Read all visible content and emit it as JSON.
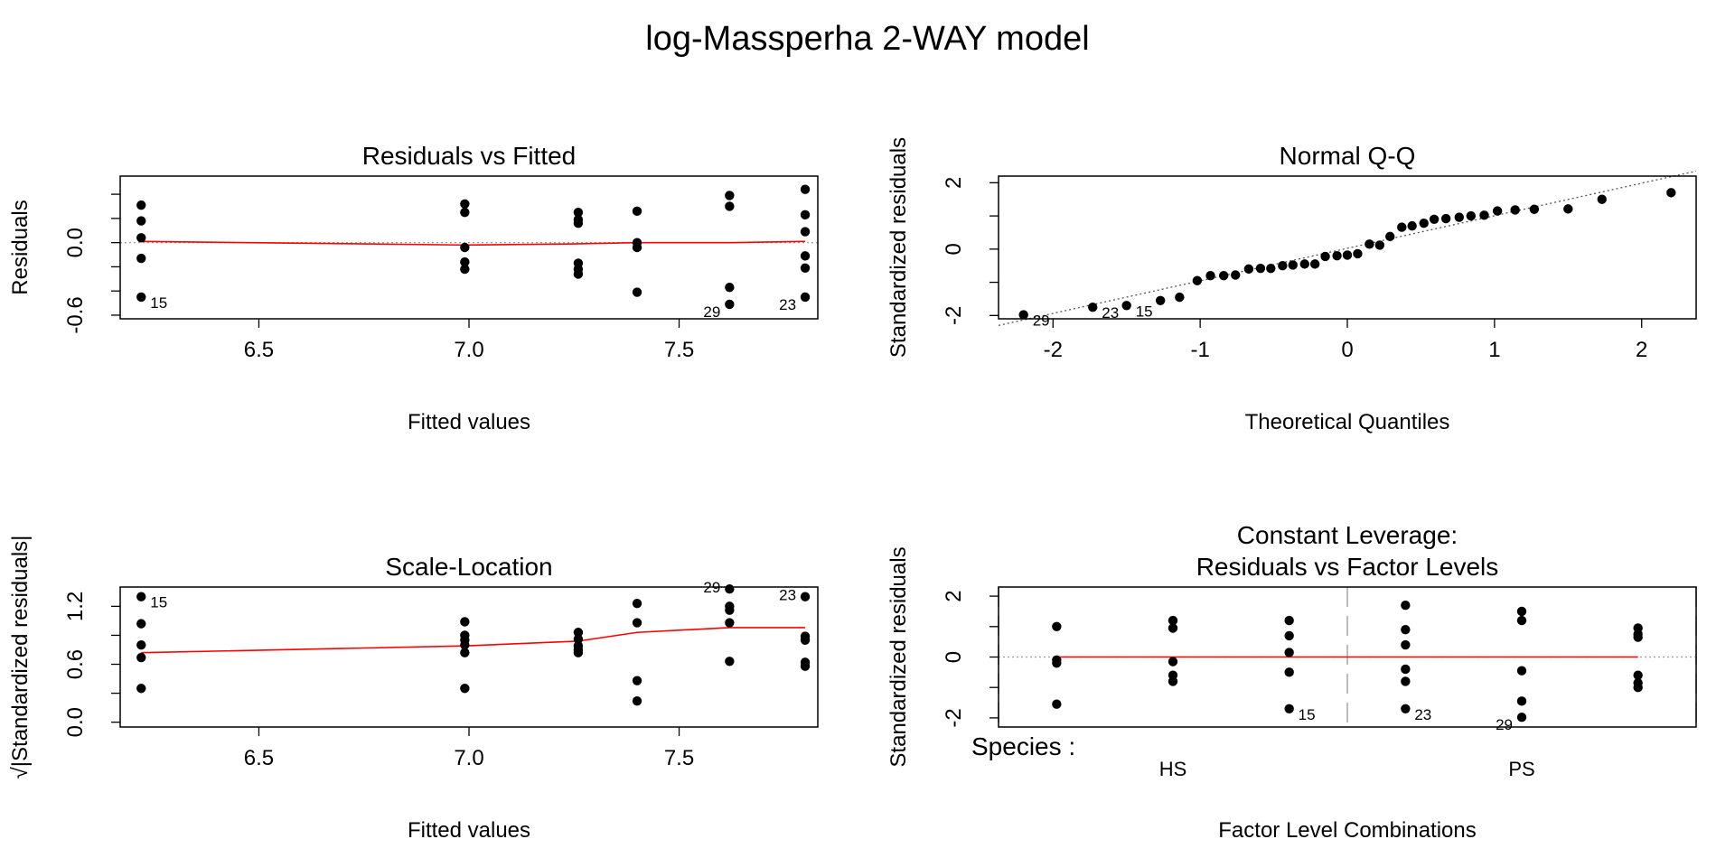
{
  "main_title": "log-Massperha 2-WAY model",
  "colors": {
    "smooth": "#ff0000",
    "points": "#000000",
    "reference": "#9a9a9a",
    "vline": "#bdbdbd"
  },
  "chart_data": [
    {
      "id": "residuals-vs-fitted",
      "type": "scatter",
      "title": "Residuals vs Fitted",
      "xlabel": "Fitted values",
      "ylabel": "Residuals",
      "xlim": [
        6.17,
        7.83
      ],
      "ylim": [
        -0.63,
        0.55
      ],
      "xticks": [
        6.5,
        7.0,
        7.5
      ],
      "xtick_labels": [
        "6.5",
        "7.0",
        "7.5"
      ],
      "yticks": [
        -0.6,
        0.0
      ],
      "ytick_labels": [
        "-0.6",
        "0.0"
      ],
      "minor_yticks": [
        -0.4,
        -0.2,
        0.2,
        0.4
      ],
      "hline": 0,
      "points": [
        {
          "x": 6.22,
          "y": 0.31
        },
        {
          "x": 6.22,
          "y": 0.18
        },
        {
          "x": 6.22,
          "y": 0.04
        },
        {
          "x": 6.22,
          "y": -0.13
        },
        {
          "x": 6.22,
          "y": -0.45,
          "label": "15"
        },
        {
          "x": 6.99,
          "y": 0.32
        },
        {
          "x": 6.99,
          "y": 0.25
        },
        {
          "x": 6.99,
          "y": -0.04
        },
        {
          "x": 6.99,
          "y": -0.16
        },
        {
          "x": 6.99,
          "y": -0.22
        },
        {
          "x": 7.26,
          "y": 0.25
        },
        {
          "x": 7.26,
          "y": 0.19
        },
        {
          "x": 7.26,
          "y": 0.16
        },
        {
          "x": 7.26,
          "y": -0.17
        },
        {
          "x": 7.26,
          "y": -0.22
        },
        {
          "x": 7.26,
          "y": -0.26
        },
        {
          "x": 7.4,
          "y": 0.26
        },
        {
          "x": 7.4,
          "y": 0.0
        },
        {
          "x": 7.4,
          "y": -0.04
        },
        {
          "x": 7.4,
          "y": -0.41
        },
        {
          "x": 7.62,
          "y": 0.39
        },
        {
          "x": 7.62,
          "y": 0.3
        },
        {
          "x": 7.62,
          "y": -0.37
        },
        {
          "x": 7.62,
          "y": -0.51,
          "label": "29"
        },
        {
          "x": 7.8,
          "y": 0.44
        },
        {
          "x": 7.8,
          "y": 0.23
        },
        {
          "x": 7.8,
          "y": 0.09
        },
        {
          "x": 7.8,
          "y": -0.11
        },
        {
          "x": 7.8,
          "y": -0.21
        },
        {
          "x": 7.8,
          "y": -0.45,
          "label": "23"
        }
      ],
      "smooth": {
        "x": [
          6.22,
          6.99,
          7.26,
          7.4,
          7.62,
          7.8
        ],
        "y": [
          0.01,
          -0.02,
          -0.01,
          0.0,
          0.0,
          0.01
        ]
      }
    },
    {
      "id": "normal-qq",
      "type": "scatter",
      "title": "Normal Q-Q",
      "xlabel": "Theoretical Quantiles",
      "ylabel": "Standardized residuals",
      "xlim": [
        -2.37,
        2.37
      ],
      "ylim": [
        -2.1,
        2.2
      ],
      "xticks": [
        -2,
        -1,
        0,
        1,
        2
      ],
      "xtick_labels": [
        "-2",
        "-1",
        "0",
        "1",
        "2"
      ],
      "yticks": [
        -2,
        0,
        2
      ],
      "ytick_labels": [
        "-2",
        "0",
        "2"
      ],
      "minor_yticks": [
        -1,
        1
      ],
      "refline": {
        "x": [
          -2.37,
          2.37
        ],
        "y": [
          -2.3,
          2.35
        ]
      },
      "points": [
        {
          "x": -2.2,
          "y": -1.98,
          "label": "29"
        },
        {
          "x": -1.73,
          "y": -1.75,
          "label": "23"
        },
        {
          "x": -1.5,
          "y": -1.7,
          "label": "15"
        },
        {
          "x": -1.27,
          "y": -1.55
        },
        {
          "x": -1.14,
          "y": -1.45
        },
        {
          "x": -1.02,
          "y": -0.95
        },
        {
          "x": -0.93,
          "y": -0.8
        },
        {
          "x": -0.84,
          "y": -0.8
        },
        {
          "x": -0.76,
          "y": -0.78
        },
        {
          "x": -0.67,
          "y": -0.6
        },
        {
          "x": -0.59,
          "y": -0.58
        },
        {
          "x": -0.52,
          "y": -0.58
        },
        {
          "x": -0.44,
          "y": -0.5
        },
        {
          "x": -0.37,
          "y": -0.48
        },
        {
          "x": -0.29,
          "y": -0.45
        },
        {
          "x": -0.22,
          "y": -0.45
        },
        {
          "x": -0.15,
          "y": -0.22
        },
        {
          "x": -0.07,
          "y": -0.2
        },
        {
          "x": 0.0,
          "y": -0.18
        },
        {
          "x": 0.07,
          "y": -0.14
        },
        {
          "x": 0.15,
          "y": 0.15
        },
        {
          "x": 0.22,
          "y": 0.12
        },
        {
          "x": 0.29,
          "y": 0.38
        },
        {
          "x": 0.37,
          "y": 0.66
        },
        {
          "x": 0.44,
          "y": 0.7
        },
        {
          "x": 0.52,
          "y": 0.78
        },
        {
          "x": 0.59,
          "y": 0.9
        },
        {
          "x": 0.67,
          "y": 0.92
        },
        {
          "x": 0.76,
          "y": 0.96
        },
        {
          "x": 0.84,
          "y": 1.0
        },
        {
          "x": 0.93,
          "y": 1.02
        },
        {
          "x": 1.02,
          "y": 1.15
        },
        {
          "x": 1.14,
          "y": 1.18
        },
        {
          "x": 1.27,
          "y": 1.2
        },
        {
          "x": 1.5,
          "y": 1.21
        },
        {
          "x": 1.73,
          "y": 1.5
        },
        {
          "x": 2.2,
          "y": 1.7
        }
      ]
    },
    {
      "id": "scale-location",
      "type": "scatter",
      "title": "Scale-Location",
      "xlabel": "Fitted values",
      "ylabel": "√|Standardized residuals|",
      "xlim": [
        6.17,
        7.83
      ],
      "ylim": [
        -0.05,
        1.4
      ],
      "xticks": [
        6.5,
        7.0,
        7.5
      ],
      "xtick_labels": [
        "6.5",
        "7.0",
        "7.5"
      ],
      "yticks": [
        0.0,
        0.6,
        1.2
      ],
      "ytick_labels": [
        "0.0",
        "0.6",
        "1.2"
      ],
      "minor_yticks": [
        0.3,
        0.9
      ],
      "points": [
        {
          "x": 6.22,
          "y": 1.3,
          "label": "15"
        },
        {
          "x": 6.22,
          "y": 1.02
        },
        {
          "x": 6.22,
          "y": 0.8
        },
        {
          "x": 6.22,
          "y": 0.67
        },
        {
          "x": 6.22,
          "y": 0.35
        },
        {
          "x": 6.99,
          "y": 1.04
        },
        {
          "x": 6.99,
          "y": 0.9
        },
        {
          "x": 6.99,
          "y": 0.85
        },
        {
          "x": 6.99,
          "y": 0.8
        },
        {
          "x": 6.99,
          "y": 0.72
        },
        {
          "x": 6.99,
          "y": 0.35
        },
        {
          "x": 7.26,
          "y": 0.93
        },
        {
          "x": 7.26,
          "y": 0.86
        },
        {
          "x": 7.26,
          "y": 0.79
        },
        {
          "x": 7.26,
          "y": 0.75
        },
        {
          "x": 7.26,
          "y": 0.72
        },
        {
          "x": 7.4,
          "y": 1.23
        },
        {
          "x": 7.4,
          "y": 1.03
        },
        {
          "x": 7.4,
          "y": 0.43
        },
        {
          "x": 7.4,
          "y": 0.22
        },
        {
          "x": 7.62,
          "y": 1.38,
          "label": "29"
        },
        {
          "x": 7.62,
          "y": 1.2
        },
        {
          "x": 7.62,
          "y": 1.16
        },
        {
          "x": 7.62,
          "y": 1.03
        },
        {
          "x": 7.62,
          "y": 0.63
        },
        {
          "x": 7.8,
          "y": 1.3,
          "label": "23"
        },
        {
          "x": 7.8,
          "y": 0.89
        },
        {
          "x": 7.8,
          "y": 0.85
        },
        {
          "x": 7.8,
          "y": 0.62
        },
        {
          "x": 7.8,
          "y": 0.58
        }
      ],
      "smooth": {
        "x": [
          6.22,
          6.99,
          7.26,
          7.4,
          7.62,
          7.8
        ],
        "y": [
          0.72,
          0.79,
          0.84,
          0.93,
          0.98,
          0.98
        ]
      }
    },
    {
      "id": "constant-leverage",
      "type": "scatter",
      "title": "Constant Leverage:",
      "title2": "Residuals vs Factor Levels",
      "xlabel": "Factor Level Combinations",
      "ylabel": "Standardized residuals",
      "xlim": [
        0.5,
        6.5
      ],
      "ylim": [
        -2.3,
        2.3
      ],
      "yticks": [
        -2,
        0,
        2
      ],
      "ytick_labels": [
        "-2",
        "0",
        "2"
      ],
      "minor_yticks": [
        -1,
        1
      ],
      "factor_label": "Species :",
      "factor_levels": [
        {
          "label": "HS",
          "x": 2
        },
        {
          "label": "PS",
          "x": 5
        }
      ],
      "vlines": [
        0.5,
        3.5,
        6.5
      ],
      "hline": 0,
      "points": [
        {
          "x": 1,
          "y": 1.0
        },
        {
          "x": 1,
          "y": -0.1
        },
        {
          "x": 1,
          "y": -0.2
        },
        {
          "x": 1,
          "y": -1.55
        },
        {
          "x": 2,
          "y": 1.2
        },
        {
          "x": 2,
          "y": 0.95
        },
        {
          "x": 2,
          "y": -0.15
        },
        {
          "x": 2,
          "y": -0.6
        },
        {
          "x": 2,
          "y": -0.8
        },
        {
          "x": 3,
          "y": 1.2
        },
        {
          "x": 3,
          "y": 0.7
        },
        {
          "x": 3,
          "y": 0.15
        },
        {
          "x": 3,
          "y": -0.5
        },
        {
          "x": 3,
          "y": -1.7,
          "label": "15"
        },
        {
          "x": 4,
          "y": 1.7
        },
        {
          "x": 4,
          "y": 0.9
        },
        {
          "x": 4,
          "y": 0.4
        },
        {
          "x": 4,
          "y": -0.4
        },
        {
          "x": 4,
          "y": -0.8
        },
        {
          "x": 4,
          "y": -1.7,
          "label": "23"
        },
        {
          "x": 5,
          "y": 1.5
        },
        {
          "x": 5,
          "y": 1.2
        },
        {
          "x": 5,
          "y": -0.45
        },
        {
          "x": 5,
          "y": -1.45
        },
        {
          "x": 5,
          "y": -1.98,
          "label": "29"
        },
        {
          "x": 6,
          "y": 0.95
        },
        {
          "x": 6,
          "y": 0.75
        },
        {
          "x": 6,
          "y": 0.65
        },
        {
          "x": 6,
          "y": -0.6
        },
        {
          "x": 6,
          "y": -0.85
        },
        {
          "x": 6,
          "y": -1.0
        }
      ],
      "smooth": {
        "x": [
          1,
          2,
          3,
          4,
          5,
          6
        ],
        "y": [
          0.0,
          0.0,
          0.0,
          0.0,
          0.0,
          0.0
        ]
      }
    }
  ]
}
